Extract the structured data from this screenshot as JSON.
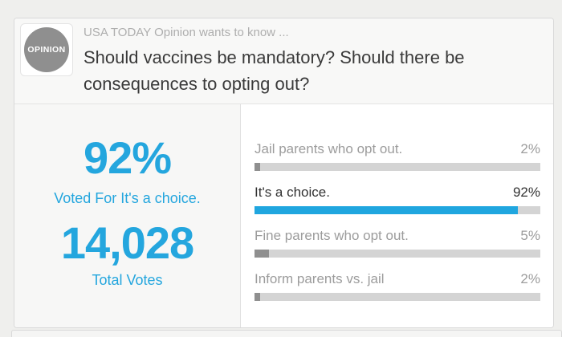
{
  "header": {
    "badge_label": "OPINION",
    "kicker": "USA TODAY Opinion wants to know ...",
    "question": "Should vaccines be mandatory? Should there be consequences to opting out?"
  },
  "summary": {
    "winner_pct": "92%",
    "winner_caption": "Voted For It's a choice.",
    "total_votes": "14,028",
    "total_votes_caption": "Total Votes"
  },
  "options": [
    {
      "label": "Jail parents who opt out.",
      "pct": "2%",
      "value": 2,
      "highlight": false
    },
    {
      "label": "It's a choice.",
      "pct": "92%",
      "value": 92,
      "highlight": true
    },
    {
      "label": "Fine parents who opt out.",
      "pct": "5%",
      "value": 5,
      "highlight": false
    },
    {
      "label": "Inform parents vs. jail",
      "pct": "2%",
      "value": 2,
      "highlight": false
    }
  ],
  "chart_data": {
    "type": "bar",
    "orientation": "horizontal",
    "categories": [
      "Jail parents who opt out.",
      "It's a choice.",
      "Fine parents who opt out.",
      "Inform parents vs. jail"
    ],
    "values": [
      2,
      92,
      5,
      2
    ],
    "value_labels": [
      "2%",
      "92%",
      "5%",
      "2%"
    ],
    "highlight_index": 1,
    "xlim": [
      0,
      100
    ],
    "title": "Should vaccines be mandatory? Should there be consequences to opting out?",
    "total_votes": 14028
  },
  "colors": {
    "accent_blue": "#24a6de",
    "bar_blue": "#20a6df",
    "bar_track": "#d4d4d4",
    "bar_gray_fill": "#8f8f8f",
    "label_gray": "#9c9c9c",
    "dark_text": "#323232",
    "badge_gray": "#8f8f8f"
  }
}
